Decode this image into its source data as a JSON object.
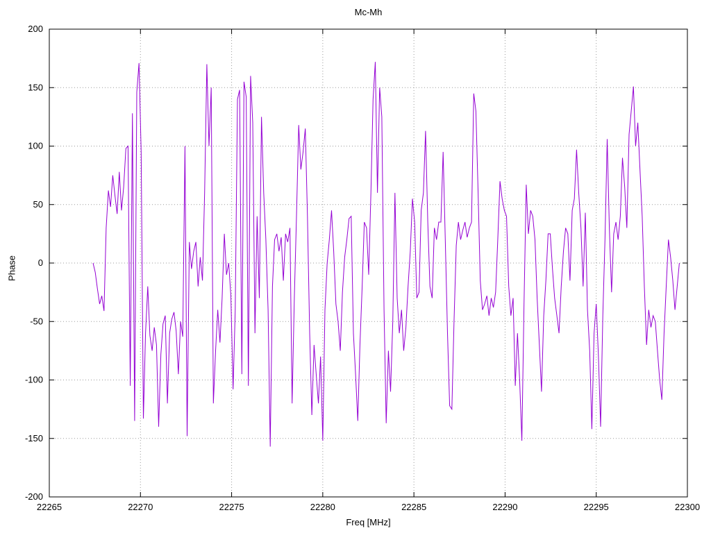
{
  "title": "Mc-Mh",
  "xlabel": "Freq [MHz]",
  "ylabel": "Phase",
  "colors": {
    "background": "#ffffff",
    "border": "#000000",
    "grid": "#9a9a9a",
    "text": "#000000",
    "line": "#9400d3"
  },
  "chart_data": {
    "type": "line",
    "title": "Mc-Mh",
    "xlabel": "Freq [MHz]",
    "ylabel": "Phase",
    "xlim": [
      22265,
      22300
    ],
    "ylim": [
      -200,
      200
    ],
    "x_ticks": [
      22265,
      22270,
      22275,
      22280,
      22285,
      22290,
      22295,
      22300
    ],
    "y_ticks": [
      -200,
      -150,
      -100,
      -50,
      0,
      50,
      100,
      150,
      200
    ],
    "grid": true,
    "legend": false,
    "series_name": "Mc-Mh phase",
    "x_start": 22267.4,
    "x_step": 0.12,
    "y": [
      0,
      -8,
      -22,
      -35,
      -28,
      -41,
      30,
      62,
      48,
      75,
      58,
      42,
      78,
      45,
      65,
      98,
      100,
      -105,
      128,
      -135,
      146,
      171,
      95,
      -133,
      -60,
      -20,
      -62,
      -75,
      -55,
      -70,
      -140,
      -78,
      -52,
      -45,
      -120,
      -60,
      -48,
      -42,
      -58,
      -95,
      -50,
      -63,
      100,
      -148,
      18,
      -5,
      10,
      18,
      -20,
      5,
      -15,
      60,
      170,
      100,
      150,
      -120,
      -75,
      -40,
      -68,
      -30,
      25,
      -10,
      0,
      -28,
      -108,
      -40,
      140,
      148,
      -95,
      155,
      142,
      -105,
      160,
      120,
      -60,
      40,
      -30,
      125,
      60,
      20,
      -40,
      -157,
      -20,
      20,
      25,
      10,
      22,
      -15,
      25,
      18,
      30,
      -120,
      -30,
      40,
      118,
      80,
      95,
      115,
      40,
      -60,
      -130,
      -70,
      -95,
      -120,
      -80,
      -152,
      -40,
      0,
      20,
      45,
      10,
      -35,
      -50,
      -75,
      -25,
      5,
      20,
      38,
      40,
      -60,
      -95,
      -135,
      -70,
      -20,
      35,
      30,
      -10,
      60,
      140,
      172,
      60,
      150,
      125,
      -40,
      -137,
      -75,
      -110,
      -50,
      60,
      -30,
      -60,
      -40,
      -75,
      -55,
      -20,
      10,
      55,
      35,
      -30,
      -25,
      45,
      60,
      113,
      35,
      -20,
      -30,
      30,
      20,
      35,
      35,
      95,
      20,
      -60,
      -122,
      -125,
      -50,
      15,
      35,
      20,
      28,
      35,
      22,
      30,
      35,
      145,
      130,
      60,
      -15,
      -40,
      -35,
      -28,
      -45,
      -30,
      -38,
      -25,
      20,
      70,
      55,
      45,
      40,
      -20,
      -45,
      -30,
      -105,
      -60,
      -100,
      -152,
      -35,
      67,
      25,
      45,
      40,
      20,
      -30,
      -70,
      -110,
      -45,
      -15,
      25,
      25,
      -5,
      -30,
      -45,
      -60,
      -20,
      10,
      30,
      25,
      -15,
      45,
      55,
      97,
      60,
      30,
      -20,
      43,
      -40,
      -75,
      -142,
      -60,
      -35,
      -80,
      -140,
      -45,
      20,
      106,
      30,
      -25,
      25,
      35,
      20,
      40,
      90,
      65,
      30,
      110,
      130,
      151,
      100,
      120,
      80,
      40,
      -20,
      -70,
      -40,
      -55,
      -45,
      -50,
      -75,
      -100,
      -117,
      -60,
      -20,
      20,
      5,
      -15,
      -40,
      -20,
      0
    ]
  }
}
